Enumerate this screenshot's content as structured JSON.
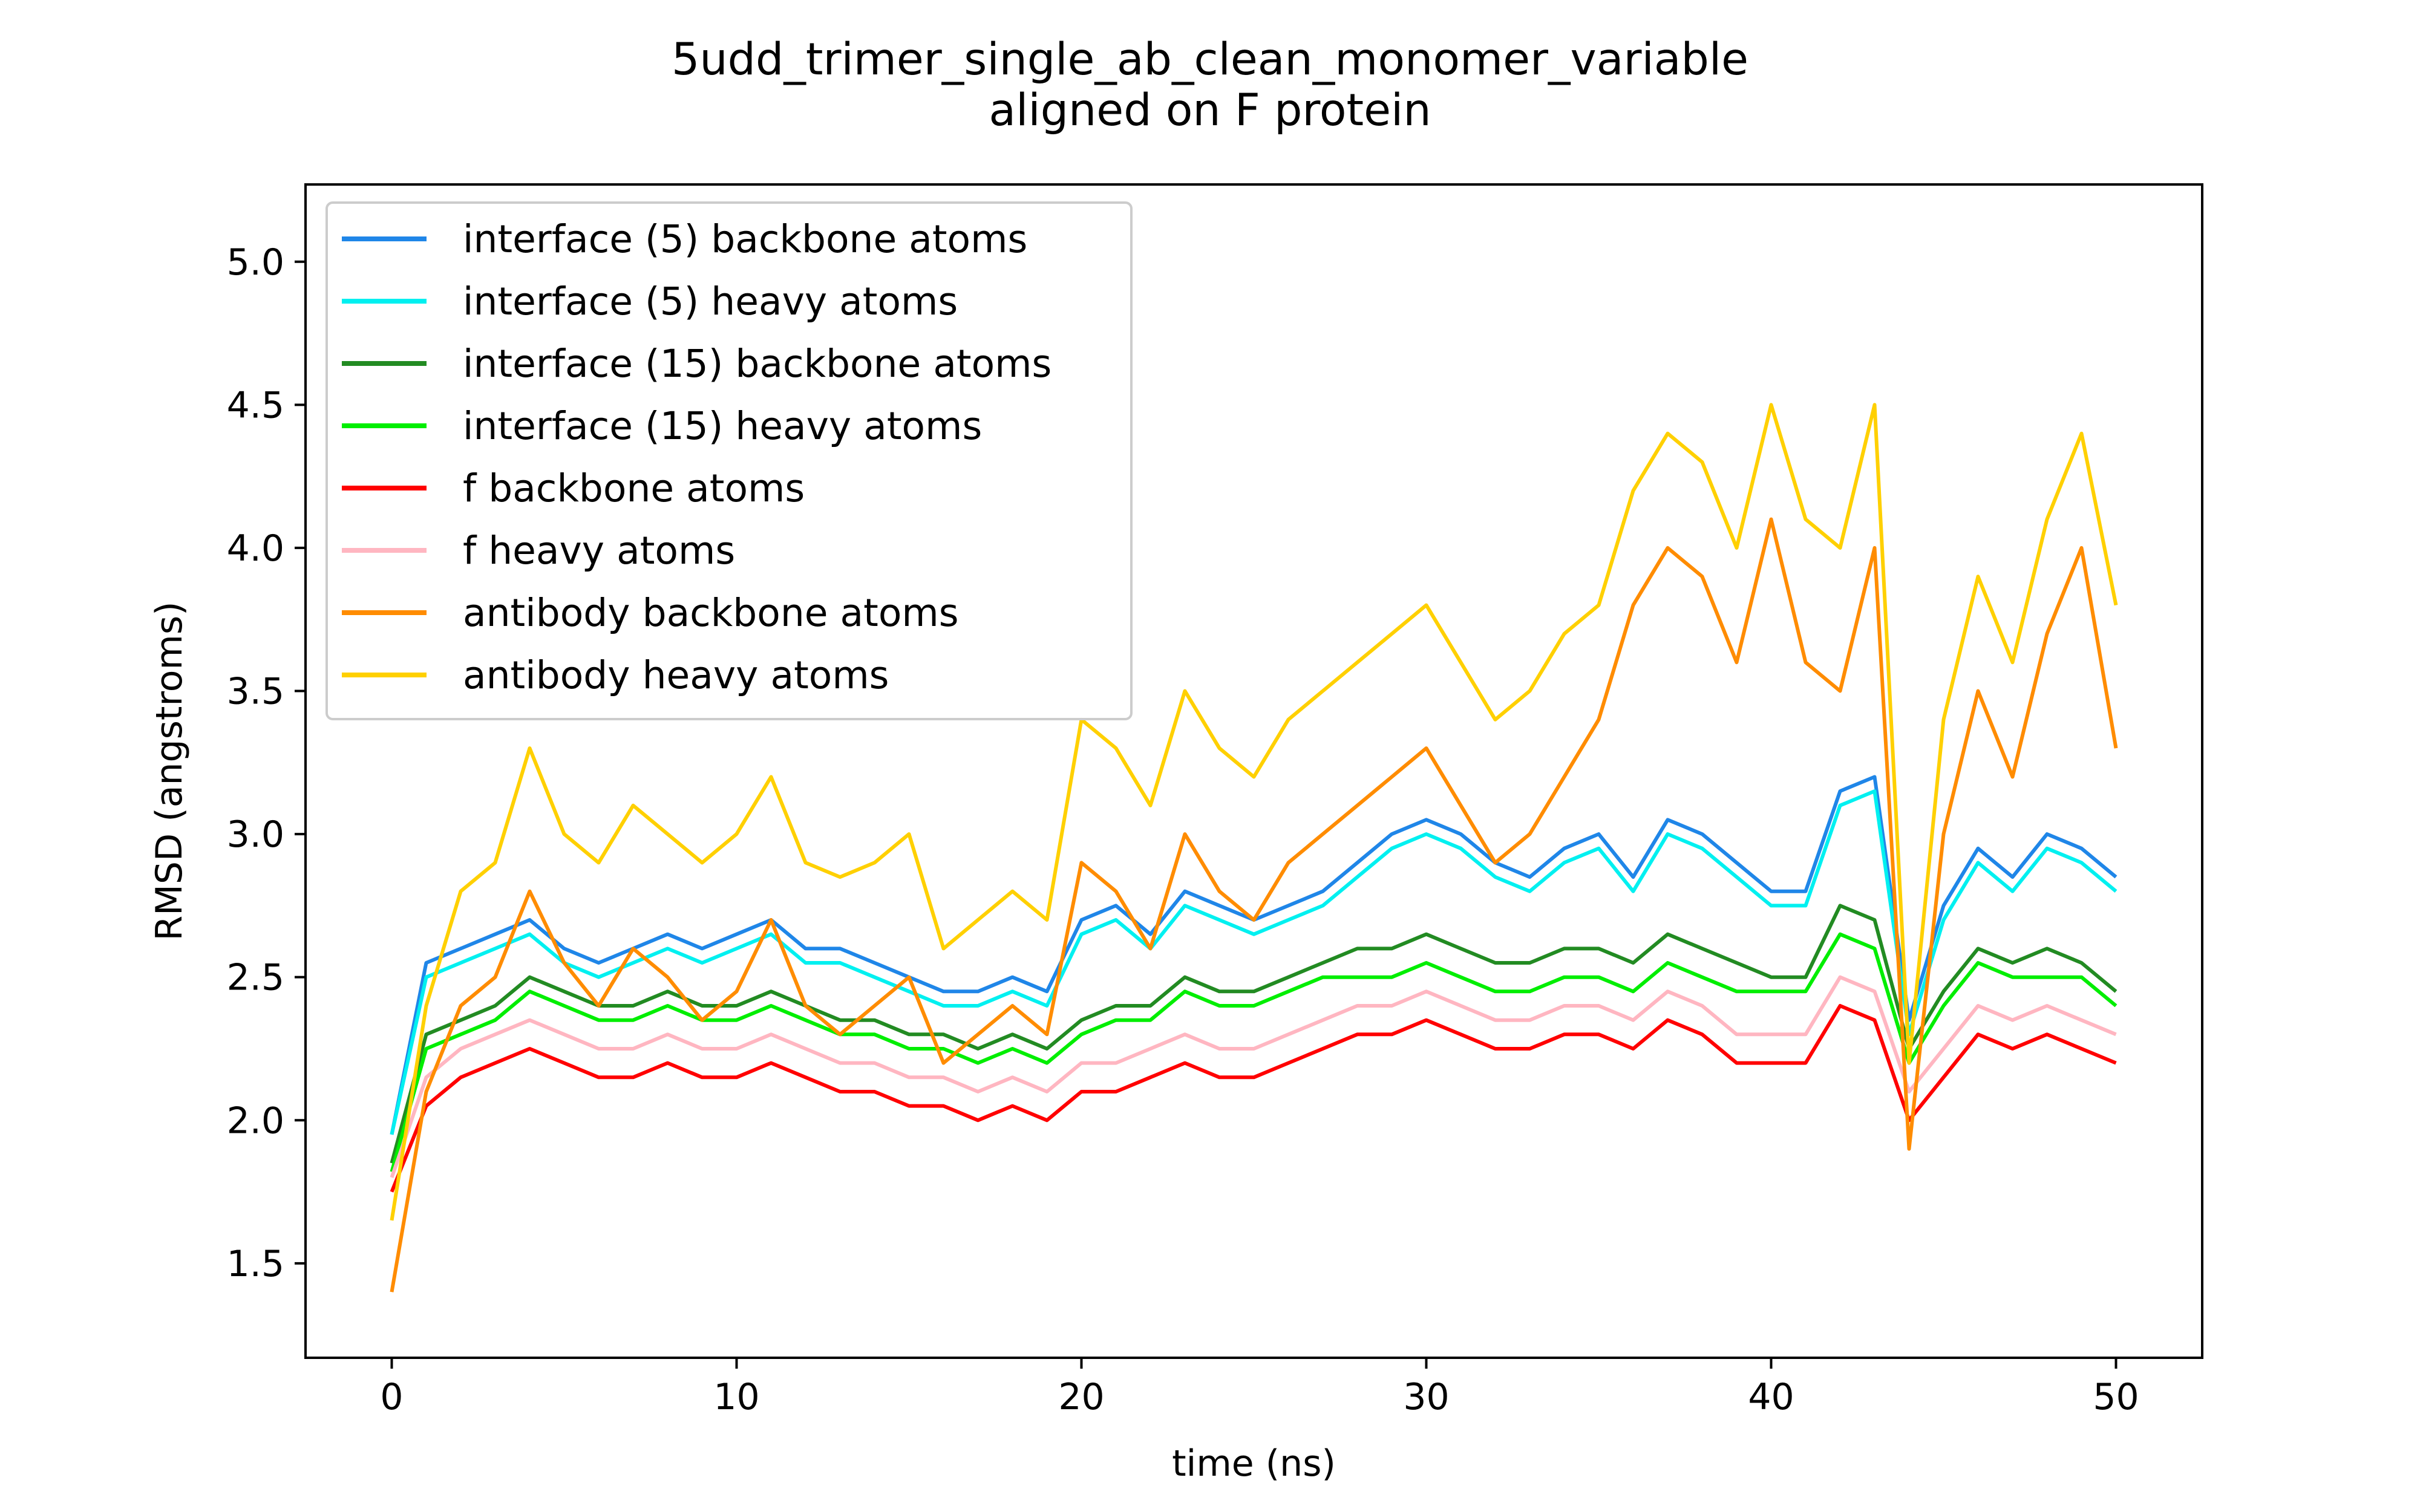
{
  "chart_data": {
    "type": "line",
    "title": "5udd_trimer_single_ab_clean_monomer_variable",
    "subtitle": "aligned on F protein",
    "xlabel": "time (ns)",
    "ylabel": "RMSD (angstroms)",
    "xlim": [
      -2.5,
      52.5
    ],
    "ylim": [
      1.17,
      5.27
    ],
    "x_ticks": [
      0,
      10,
      20,
      30,
      40,
      50
    ],
    "y_ticks": [
      1.5,
      2.0,
      2.5,
      3.0,
      3.5,
      4.0,
      4.5,
      5.0
    ],
    "x_tick_labels": [
      "0",
      "10",
      "20",
      "30",
      "40",
      "50"
    ],
    "y_tick_labels": [
      "1.5",
      "2.0",
      "2.5",
      "3.0",
      "3.5",
      "4.0",
      "4.5",
      "5.0"
    ],
    "legend_position": "upper-left",
    "grid": false,
    "x": [
      0,
      1,
      2,
      3,
      4,
      5,
      6,
      7,
      8,
      9,
      10,
      11,
      12,
      13,
      14,
      15,
      16,
      17,
      18,
      19,
      20,
      21,
      22,
      23,
      24,
      25,
      26,
      27,
      28,
      29,
      30,
      31,
      32,
      33,
      34,
      35,
      36,
      37,
      38,
      39,
      40,
      41,
      42,
      43,
      44,
      45,
      46,
      47,
      48,
      49,
      50
    ],
    "series": [
      {
        "name": "interface (5) backbone atoms",
        "color": "#1f86e8",
        "values": [
          1.95,
          2.55,
          2.6,
          2.65,
          2.7,
          2.6,
          2.55,
          2.6,
          2.65,
          2.6,
          2.65,
          2.7,
          2.6,
          2.6,
          2.55,
          2.5,
          2.45,
          2.45,
          2.5,
          2.45,
          2.7,
          2.75,
          2.65,
          2.8,
          2.75,
          2.7,
          2.75,
          2.8,
          2.9,
          3.0,
          3.05,
          3.0,
          2.9,
          2.85,
          2.95,
          3.0,
          2.85,
          3.05,
          3.0,
          2.9,
          2.8,
          2.8,
          3.15,
          3.2,
          2.35,
          2.75,
          2.95,
          2.85,
          3.0,
          2.95,
          2.85
        ]
      },
      {
        "name": "interface (5) heavy atoms",
        "color": "#00f0f0",
        "values": [
          1.95,
          2.5,
          2.55,
          2.6,
          2.65,
          2.55,
          2.5,
          2.55,
          2.6,
          2.55,
          2.6,
          2.65,
          2.55,
          2.55,
          2.5,
          2.45,
          2.4,
          2.4,
          2.45,
          2.4,
          2.65,
          2.7,
          2.6,
          2.75,
          2.7,
          2.65,
          2.7,
          2.75,
          2.85,
          2.95,
          3.0,
          2.95,
          2.85,
          2.8,
          2.9,
          2.95,
          2.8,
          3.0,
          2.95,
          2.85,
          2.75,
          2.75,
          3.1,
          3.15,
          2.3,
          2.7,
          2.9,
          2.8,
          2.95,
          2.9,
          2.8
        ]
      },
      {
        "name": "interface (15) backbone atoms",
        "color": "#228b22",
        "values": [
          1.85,
          2.3,
          2.35,
          2.4,
          2.5,
          2.45,
          2.4,
          2.4,
          2.45,
          2.4,
          2.4,
          2.45,
          2.4,
          2.35,
          2.35,
          2.3,
          2.3,
          2.25,
          2.3,
          2.25,
          2.35,
          2.4,
          2.4,
          2.5,
          2.45,
          2.45,
          2.5,
          2.55,
          2.6,
          2.6,
          2.65,
          2.6,
          2.55,
          2.55,
          2.6,
          2.6,
          2.55,
          2.65,
          2.6,
          2.55,
          2.5,
          2.5,
          2.75,
          2.7,
          2.25,
          2.45,
          2.6,
          2.55,
          2.6,
          2.55,
          2.45
        ]
      },
      {
        "name": "interface (15) heavy atoms",
        "color": "#00ee00",
        "values": [
          1.82,
          2.25,
          2.3,
          2.35,
          2.45,
          2.4,
          2.35,
          2.35,
          2.4,
          2.35,
          2.35,
          2.4,
          2.35,
          2.3,
          2.3,
          2.25,
          2.25,
          2.2,
          2.25,
          2.2,
          2.3,
          2.35,
          2.35,
          2.45,
          2.4,
          2.4,
          2.45,
          2.5,
          2.5,
          2.5,
          2.55,
          2.5,
          2.45,
          2.45,
          2.5,
          2.5,
          2.45,
          2.55,
          2.5,
          2.45,
          2.45,
          2.45,
          2.65,
          2.6,
          2.2,
          2.4,
          2.55,
          2.5,
          2.5,
          2.5,
          2.4
        ]
      },
      {
        "name": "f backbone atoms",
        "color": "#ff0000",
        "values": [
          1.75,
          2.05,
          2.15,
          2.2,
          2.25,
          2.2,
          2.15,
          2.15,
          2.2,
          2.15,
          2.15,
          2.2,
          2.15,
          2.1,
          2.1,
          2.05,
          2.05,
          2.0,
          2.05,
          2.0,
          2.1,
          2.1,
          2.15,
          2.2,
          2.15,
          2.15,
          2.2,
          2.25,
          2.3,
          2.3,
          2.35,
          2.3,
          2.25,
          2.25,
          2.3,
          2.3,
          2.25,
          2.35,
          2.3,
          2.2,
          2.2,
          2.2,
          2.4,
          2.35,
          2.0,
          2.15,
          2.3,
          2.25,
          2.3,
          2.25,
          2.2
        ]
      },
      {
        "name": "f heavy atoms",
        "color": "#ffb6c1",
        "values": [
          1.8,
          2.15,
          2.25,
          2.3,
          2.35,
          2.3,
          2.25,
          2.25,
          2.3,
          2.25,
          2.25,
          2.3,
          2.25,
          2.2,
          2.2,
          2.15,
          2.15,
          2.1,
          2.15,
          2.1,
          2.2,
          2.2,
          2.25,
          2.3,
          2.25,
          2.25,
          2.3,
          2.35,
          2.4,
          2.4,
          2.45,
          2.4,
          2.35,
          2.35,
          2.4,
          2.4,
          2.35,
          2.45,
          2.4,
          2.3,
          2.3,
          2.3,
          2.5,
          2.45,
          2.1,
          2.25,
          2.4,
          2.35,
          2.4,
          2.35,
          2.3
        ]
      },
      {
        "name": "antibody backbone atoms",
        "color": "#ff8c00",
        "values": [
          1.4,
          2.1,
          2.4,
          2.5,
          2.8,
          2.55,
          2.4,
          2.6,
          2.5,
          2.35,
          2.45,
          2.7,
          2.4,
          2.3,
          2.4,
          2.5,
          2.2,
          2.3,
          2.4,
          2.3,
          2.9,
          2.8,
          2.6,
          3.0,
          2.8,
          2.7,
          2.9,
          3.0,
          3.1,
          3.2,
          3.3,
          3.1,
          2.9,
          3.0,
          3.2,
          3.4,
          3.8,
          4.0,
          3.9,
          3.6,
          4.1,
          3.6,
          3.5,
          4.0,
          1.9,
          3.0,
          3.5,
          3.2,
          3.7,
          4.0,
          3.3
        ]
      },
      {
        "name": "antibody heavy atoms",
        "color": "#ffd000",
        "values": [
          1.65,
          2.4,
          2.8,
          2.9,
          3.3,
          3.0,
          2.9,
          3.1,
          3.0,
          2.9,
          3.0,
          3.2,
          2.9,
          2.85,
          2.9,
          3.0,
          2.6,
          2.7,
          2.8,
          2.7,
          3.4,
          3.3,
          3.1,
          3.5,
          3.3,
          3.2,
          3.4,
          3.5,
          3.6,
          3.7,
          3.8,
          3.6,
          3.4,
          3.5,
          3.7,
          3.8,
          4.2,
          4.4,
          4.3,
          4.0,
          4.5,
          4.1,
          4.0,
          4.5,
          2.2,
          3.4,
          3.9,
          3.6,
          4.1,
          4.4,
          3.8
        ]
      }
    ]
  }
}
